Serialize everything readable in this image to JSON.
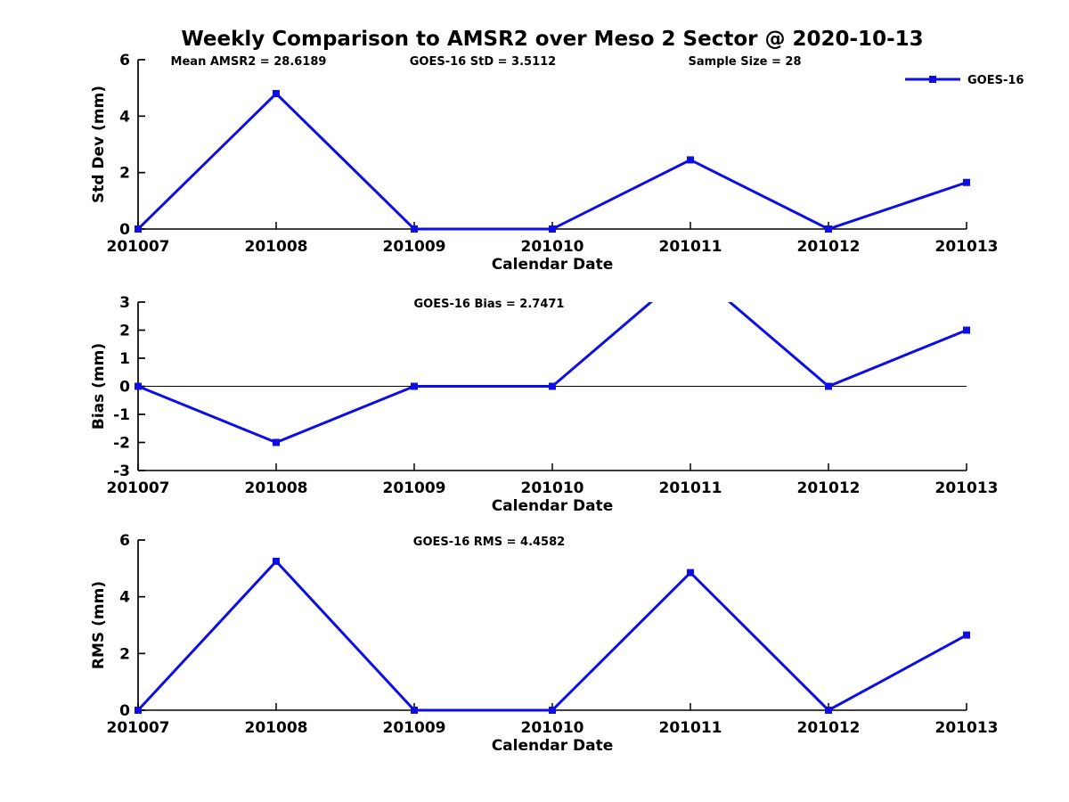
{
  "figure": {
    "title": "Weekly Comparison to AMSR2 over Meso 2 Sector @ 2020-10-13",
    "stats": {
      "mean_amsr2": "Mean AMSR2 = 28.6189",
      "goes16_std": "GOES-16 StD = 3.5112",
      "sample_size": "Sample Size = 28"
    },
    "legend": {
      "label": "GOES-16",
      "marker": "square"
    },
    "line_color": "#0d0de6",
    "axis_color": "#000000",
    "background_color": "#ffffff"
  },
  "chart_data": [
    {
      "type": "line",
      "panel": "std-dev",
      "title": "",
      "x": [
        "201007",
        "201008",
        "201009",
        "201010",
        "201011",
        "201012",
        "201013"
      ],
      "series": [
        {
          "name": "GOES-16",
          "values": [
            0,
            4.8,
            0,
            0,
            2.45,
            0,
            1.65
          ]
        }
      ],
      "xlabel": "Calendar Date",
      "ylabel": "Std Dev (mm)",
      "ylim": [
        0,
        6
      ],
      "yticks": [
        0,
        2,
        4,
        6
      ],
      "grid": false,
      "zero_line": false,
      "legend_position": "top-right-outside"
    },
    {
      "type": "line",
      "panel": "bias",
      "title": "GOES-16 Bias  = 2.7471",
      "x": [
        "201007",
        "201008",
        "201009",
        "201010",
        "201011",
        "201012",
        "201013"
      ],
      "series": [
        {
          "name": "GOES-16",
          "values": [
            0,
            -2,
            0,
            0,
            4.2,
            0,
            2
          ]
        }
      ],
      "xlabel": "Calendar Date",
      "ylabel": "Bias (mm)",
      "ylim": [
        -3,
        3
      ],
      "yticks": [
        -3,
        -2,
        -1,
        0,
        1,
        2,
        3
      ],
      "grid": false,
      "zero_line": true,
      "note": "peak at 201011 exceeds ylim and is clipped at top of axes"
    },
    {
      "type": "line",
      "panel": "rms",
      "title": "GOES-16 RMS = 4.4582",
      "x": [
        "201007",
        "201008",
        "201009",
        "201010",
        "201011",
        "201012",
        "201013"
      ],
      "series": [
        {
          "name": "GOES-16",
          "values": [
            0,
            5.25,
            0,
            0,
            4.85,
            0,
            2.65
          ]
        }
      ],
      "xlabel": "Calendar Date",
      "ylabel": "RMS (mm)",
      "ylim": [
        0,
        6
      ],
      "yticks": [
        0,
        2,
        4,
        6
      ],
      "grid": false,
      "zero_line": false
    }
  ]
}
